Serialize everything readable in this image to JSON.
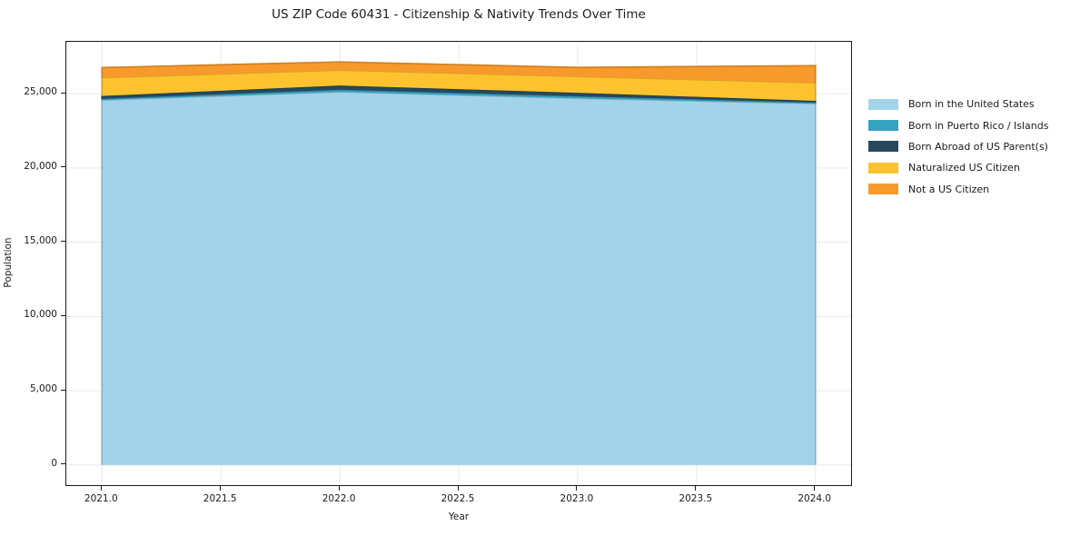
{
  "chart_data": {
    "type": "area",
    "stacked": true,
    "title": "US ZIP Code 60431 - Citizenship & Nativity Trends Over Time",
    "xlabel": "Year",
    "ylabel": "Population",
    "x": [
      2021,
      2022,
      2023,
      2024
    ],
    "series": [
      {
        "name": "Born in the United States",
        "color": "#a3d3ea",
        "values": [
          24570,
          25120,
          24690,
          24330
        ]
      },
      {
        "name": "Born in Puerto Rico / Islands",
        "color": "#35a3bf",
        "values": [
          90,
          150,
          140,
          80
        ]
      },
      {
        "name": "Born Abroad of US Parent(s)",
        "color": "#25485e",
        "values": [
          190,
          280,
          230,
          110
        ]
      },
      {
        "name": "Naturalized US Citizen",
        "color": "#fdc32f",
        "values": [
          1230,
          1040,
          1100,
          1220
        ]
      },
      {
        "name": "Not a US Citizen",
        "color": "#f79a2b",
        "values": [
          680,
          550,
          610,
          1150
        ]
      }
    ],
    "xlim": [
      2020.85,
      2024.15
    ],
    "ylim": [
      -1357,
      28497
    ],
    "xticks": [
      2021.0,
      2021.5,
      2022.0,
      2022.5,
      2023.0,
      2023.5,
      2024.0
    ],
    "xtick_labels": [
      "2021.0",
      "2021.5",
      "2022.0",
      "2022.5",
      "2023.0",
      "2023.5",
      "2024.0"
    ],
    "yticks": [
      0,
      5000,
      10000,
      15000,
      20000,
      25000
    ],
    "ytick_labels": [
      "0",
      "5,000",
      "10,000",
      "15,000",
      "20,000",
      "25,000"
    ],
    "grid": true,
    "grid_color": "#e9e9e9",
    "legend_position": "right-outside",
    "background_color": "#ffffff",
    "spine_color": "#1a1a1a"
  }
}
